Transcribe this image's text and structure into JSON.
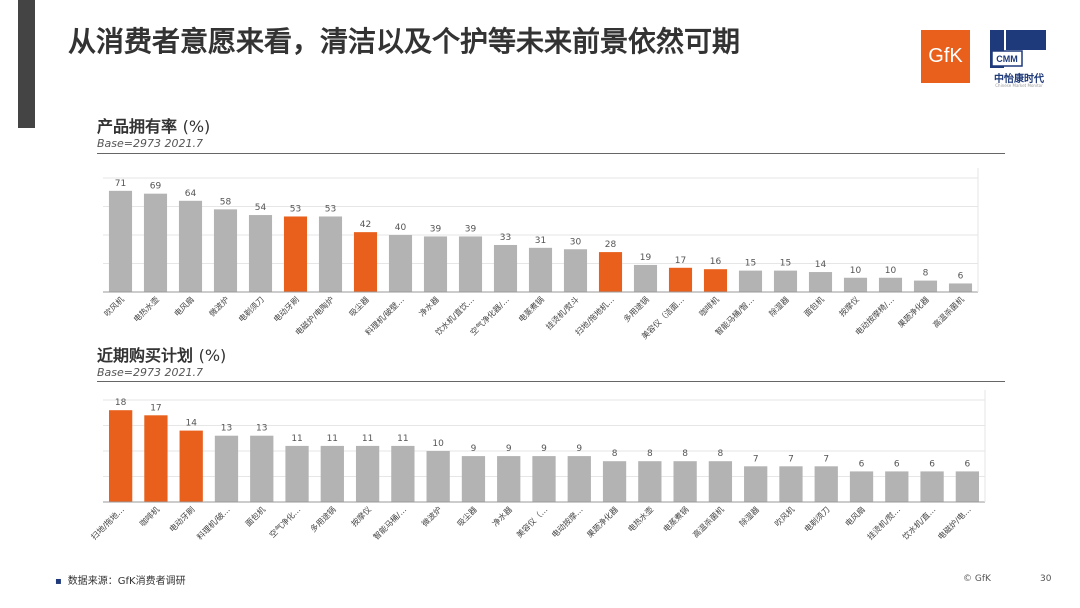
{
  "page": {
    "title": "从消费者意愿来看，清洁以及个护等未来前景依然可期",
    "source_bullet": "▪",
    "source": "数据来源：GfK消费者调研",
    "copyright": "© GfK",
    "page_number": "30"
  },
  "logos": {
    "gfk": "GfK",
    "cmm_mark": "CMM",
    "cmm_name": "中怡康时代",
    "cmm_sub": "Chinese Market Monitor"
  },
  "colors": {
    "gray": "#b3b3b3",
    "highlight": "#e8601c",
    "grid": "#e6e6e6",
    "axis": "#9a9a9a",
    "text": "#333333"
  },
  "chart_data": [
    {
      "type": "bar",
      "title": "产品拥有率",
      "unit": "(%)",
      "base": "Base=2973 2021.7",
      "ylim": [
        0,
        80
      ],
      "grid": true,
      "categories": [
        "吹风机",
        "电热水壶",
        "电风扇",
        "微波炉",
        "电剃须刀",
        "电动牙刷",
        "电磁炉/电陶炉",
        "吸尘器",
        "料理机/破壁…",
        "净水器",
        "饮水机/直饮…",
        "空气净化器/…",
        "电蒸煮锅",
        "挂烫机/熨斗",
        "扫地/拖地机…",
        "多用途锅",
        "美容仪（洁面…",
        "咖啡机",
        "智能马桶/智…",
        "除湿器",
        "面包机",
        "按摩仪",
        "电动按摩椅/…",
        "果蔬净化器",
        "高温杀菌机"
      ],
      "values": [
        71,
        69,
        64,
        58,
        54,
        53,
        53,
        42,
        40,
        39,
        39,
        33,
        31,
        30,
        28,
        19,
        17,
        16,
        15,
        15,
        14,
        10,
        10,
        8,
        6
      ],
      "highlight": [
        false,
        false,
        false,
        false,
        false,
        true,
        false,
        true,
        false,
        false,
        false,
        false,
        false,
        false,
        true,
        false,
        true,
        true,
        false,
        false,
        false,
        false,
        false,
        false,
        false
      ]
    },
    {
      "type": "bar",
      "title": "近期购买计划",
      "unit": "(%)",
      "base": "Base=2973 2021.7",
      "ylim": [
        0,
        20
      ],
      "grid": true,
      "categories": [
        "扫地/拖地…",
        "咖啡机",
        "电动牙刷",
        "料理机/破…",
        "面包机",
        "空气净化…",
        "多用途锅",
        "按摩仪",
        "智能马桶/…",
        "微波炉",
        "吸尘器",
        "净水器",
        "美容仪（…",
        "电动按摩…",
        "果蔬净化器",
        "电热水壶",
        "电蒸煮锅",
        "高温杀菌机",
        "除湿器",
        "吹风机",
        "电剃须刀",
        "电风扇",
        "挂烫机/熨…",
        "饮水机/直…",
        "电磁炉/电…"
      ],
      "values": [
        18,
        17,
        14,
        13,
        13,
        11,
        11,
        11,
        11,
        10,
        9,
        9,
        9,
        9,
        8,
        8,
        8,
        8,
        7,
        7,
        7,
        6,
        6,
        6,
        6
      ],
      "highlight": [
        true,
        true,
        true,
        false,
        false,
        false,
        false,
        false,
        false,
        false,
        false,
        false,
        false,
        false,
        false,
        false,
        false,
        false,
        false,
        false,
        false,
        false,
        false,
        false,
        false
      ]
    }
  ]
}
